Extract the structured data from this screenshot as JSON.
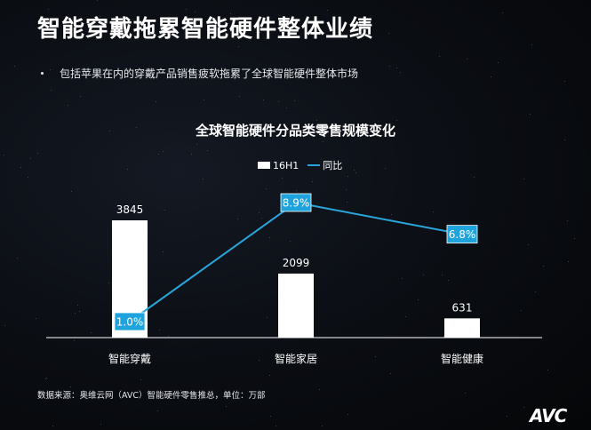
{
  "slide": {
    "title": "智能穿戴拖累智能硬件整体业绩",
    "bullet": "包括苹果在内的穿戴产品销售疲软拖累了全球智能硬件整体市场",
    "source": "数据来源：奥维云网（AVC）智能硬件零售推总，单位：万部",
    "logo": "AVC"
  },
  "colors": {
    "bar": "#ffffff",
    "line": "#2aa4db",
    "label_box": "#1fa3dc"
  },
  "chart_data": {
    "type": "bar",
    "title": "全球智能硬件分品类零售规模变化",
    "categories": [
      "智能穿戴",
      "智能家居",
      "智能健康"
    ],
    "series": [
      {
        "name": "16H1",
        "kind": "bar",
        "values": [
          3845,
          2099,
          631
        ],
        "labels": [
          "3845",
          "2099",
          "631"
        ]
      },
      {
        "name": "同比",
        "kind": "line",
        "values": [
          1.0,
          8.9,
          6.8
        ],
        "labels": [
          "1.0%",
          "8.9%",
          "6.8%"
        ]
      }
    ],
    "legend_position": "top-center",
    "grid": false
  }
}
